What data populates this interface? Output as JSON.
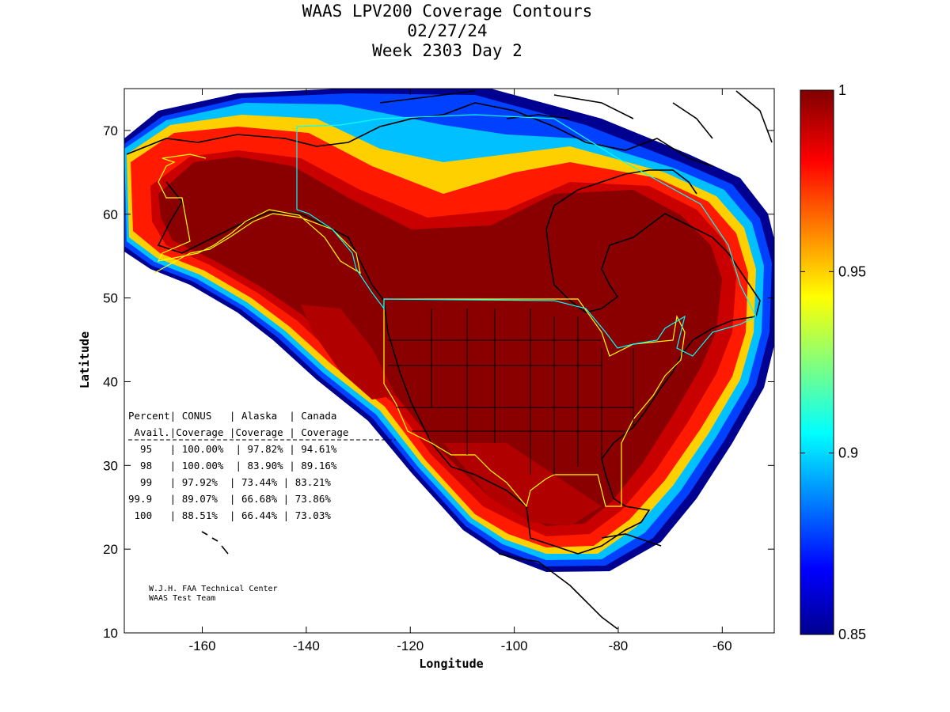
{
  "title": {
    "line1": "WAAS LPV200 Coverage Contours",
    "line2": "02/27/24",
    "line3": "Week 2303 Day 2"
  },
  "map": {
    "xlabel": "Longitude",
    "ylabel": "Latitude",
    "xlim": [
      -175,
      -50
    ],
    "ylim": [
      10,
      75
    ],
    "x_ticks": [
      -160,
      -140,
      -120,
      -100,
      -80,
      -60
    ],
    "y_ticks": [
      10,
      20,
      30,
      40,
      50,
      60,
      70
    ],
    "x_tick_labels": [
      "-160",
      "-140",
      "-120",
      "-100",
      "-80",
      "-60"
    ],
    "y_tick_labels": [
      "10",
      "20",
      "30",
      "40",
      "50",
      "60",
      "70"
    ]
  },
  "colorbar": {
    "min": 0.85,
    "max": 1,
    "ticks": [
      0.85,
      0.9,
      0.95,
      1
    ],
    "tick_labels": [
      "0.85",
      "0.9",
      "0.95",
      "1"
    ],
    "colormap": "jet"
  },
  "coverage_table": {
    "header1": "Percent| CONUS   | Alaska  | Canada",
    "header2": " Avail.|Coverage |Coverage | Coverage",
    "rows": [
      "  95   | 100.00%  | 97.82% | 94.61%",
      "  98   | 100.00%  | 83.90% | 89.16%",
      "  99   | 97.92%  | 73.44% | 83.21%",
      "99.9   | 89.07%  | 66.68% | 73.86%",
      " 100   | 88.51%  | 66.44% | 73.03%"
    ]
  },
  "credit": {
    "line1": "W.J.H. FAA Technical Center",
    "line2": "WAAS Test Team"
  },
  "chart_data": {
    "type": "heatmap",
    "title": "WAAS LPV200 Coverage Contours",
    "xlabel": "Longitude",
    "ylabel": "Latitude",
    "xlim": [
      -175,
      -50
    ],
    "ylim": [
      10,
      75
    ],
    "colorbar_range": [
      0.85,
      1
    ],
    "series": [
      {
        "region": "CONUS",
        "availability_pct": [
          95,
          98,
          99,
          99.9,
          100
        ],
        "coverage_pct": [
          100.0,
          100.0,
          97.92,
          89.07,
          88.51
        ]
      },
      {
        "region": "Alaska",
        "availability_pct": [
          95,
          98,
          99,
          99.9,
          100
        ],
        "coverage_pct": [
          97.82,
          83.9,
          73.44,
          66.68,
          66.44
        ]
      },
      {
        "region": "Canada",
        "availability_pct": [
          95,
          98,
          99,
          99.9,
          100
        ],
        "coverage_pct": [
          94.61,
          89.16,
          83.21,
          73.86,
          73.03
        ]
      }
    ]
  }
}
